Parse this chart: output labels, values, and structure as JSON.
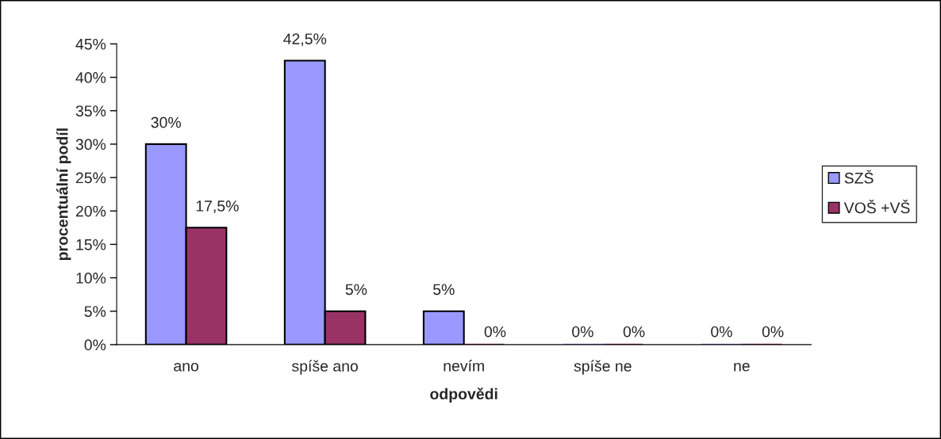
{
  "chart_data": {
    "type": "bar",
    "xlabel": "odpovědi",
    "ylabel": "procentuální podíl",
    "categories": [
      "ano",
      "spíše ano",
      "nevím",
      "spíše ne",
      "ne"
    ],
    "series": [
      {
        "name": "SZŠ",
        "color": "#9999ff",
        "values": [
          30,
          42.5,
          5,
          0,
          0
        ],
        "value_labels": [
          "30%",
          "42,5%",
          "5%",
          "0%",
          "0%"
        ]
      },
      {
        "name": "VOŠ +VŠ",
        "color": "#993366",
        "values": [
          17.5,
          5,
          0,
          0,
          0
        ],
        "value_labels": [
          "17,5%",
          "5%",
          "0%",
          "0%",
          "0%"
        ]
      }
    ],
    "ylim": [
      0,
      45
    ],
    "yticks": [
      {
        "value": 0,
        "label": "0%"
      },
      {
        "value": 5,
        "label": "5%"
      },
      {
        "value": 10,
        "label": "10%"
      },
      {
        "value": 15,
        "label": "15%"
      },
      {
        "value": 20,
        "label": "20%"
      },
      {
        "value": 25,
        "label": "25%"
      },
      {
        "value": 30,
        "label": "30%"
      },
      {
        "value": 35,
        "label": "35%"
      },
      {
        "value": 40,
        "label": "40%"
      },
      {
        "value": 45,
        "label": "45%"
      }
    ],
    "grid": false,
    "legend": "right"
  }
}
